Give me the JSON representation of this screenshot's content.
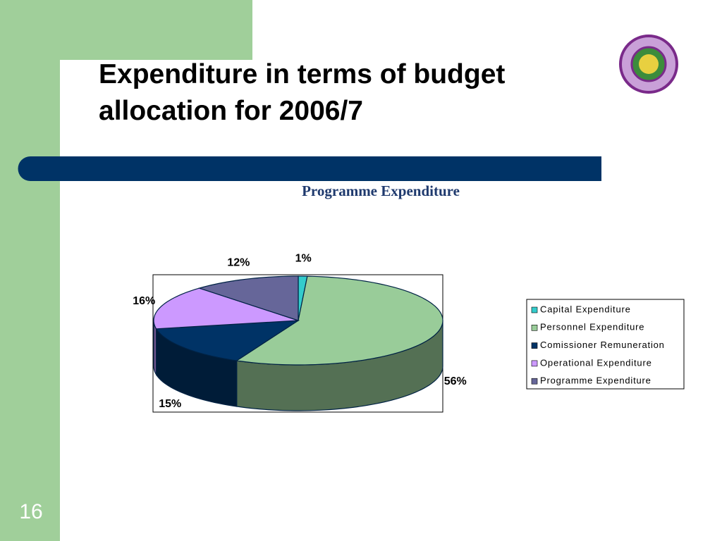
{
  "slide": {
    "title": "Expenditure in terms of budget allocation for 2006/7",
    "number": "16"
  },
  "chart_data": {
    "type": "pie3d",
    "title": "Programme Expenditure",
    "categories": [
      "Capital Expenditure",
      "Personnel Expenditure",
      "Comissioner Remuneration",
      "Operational Expenditure",
      "Programme Expenditure"
    ],
    "values": [
      1,
      56,
      15,
      16,
      12
    ],
    "value_labels": [
      "1%",
      "56%",
      "15%",
      "16%",
      "12%"
    ],
    "colors": [
      "#33cccc",
      "#99cc99",
      "#003366",
      "#cc99ff",
      "#666699"
    ],
    "legend": "right"
  }
}
